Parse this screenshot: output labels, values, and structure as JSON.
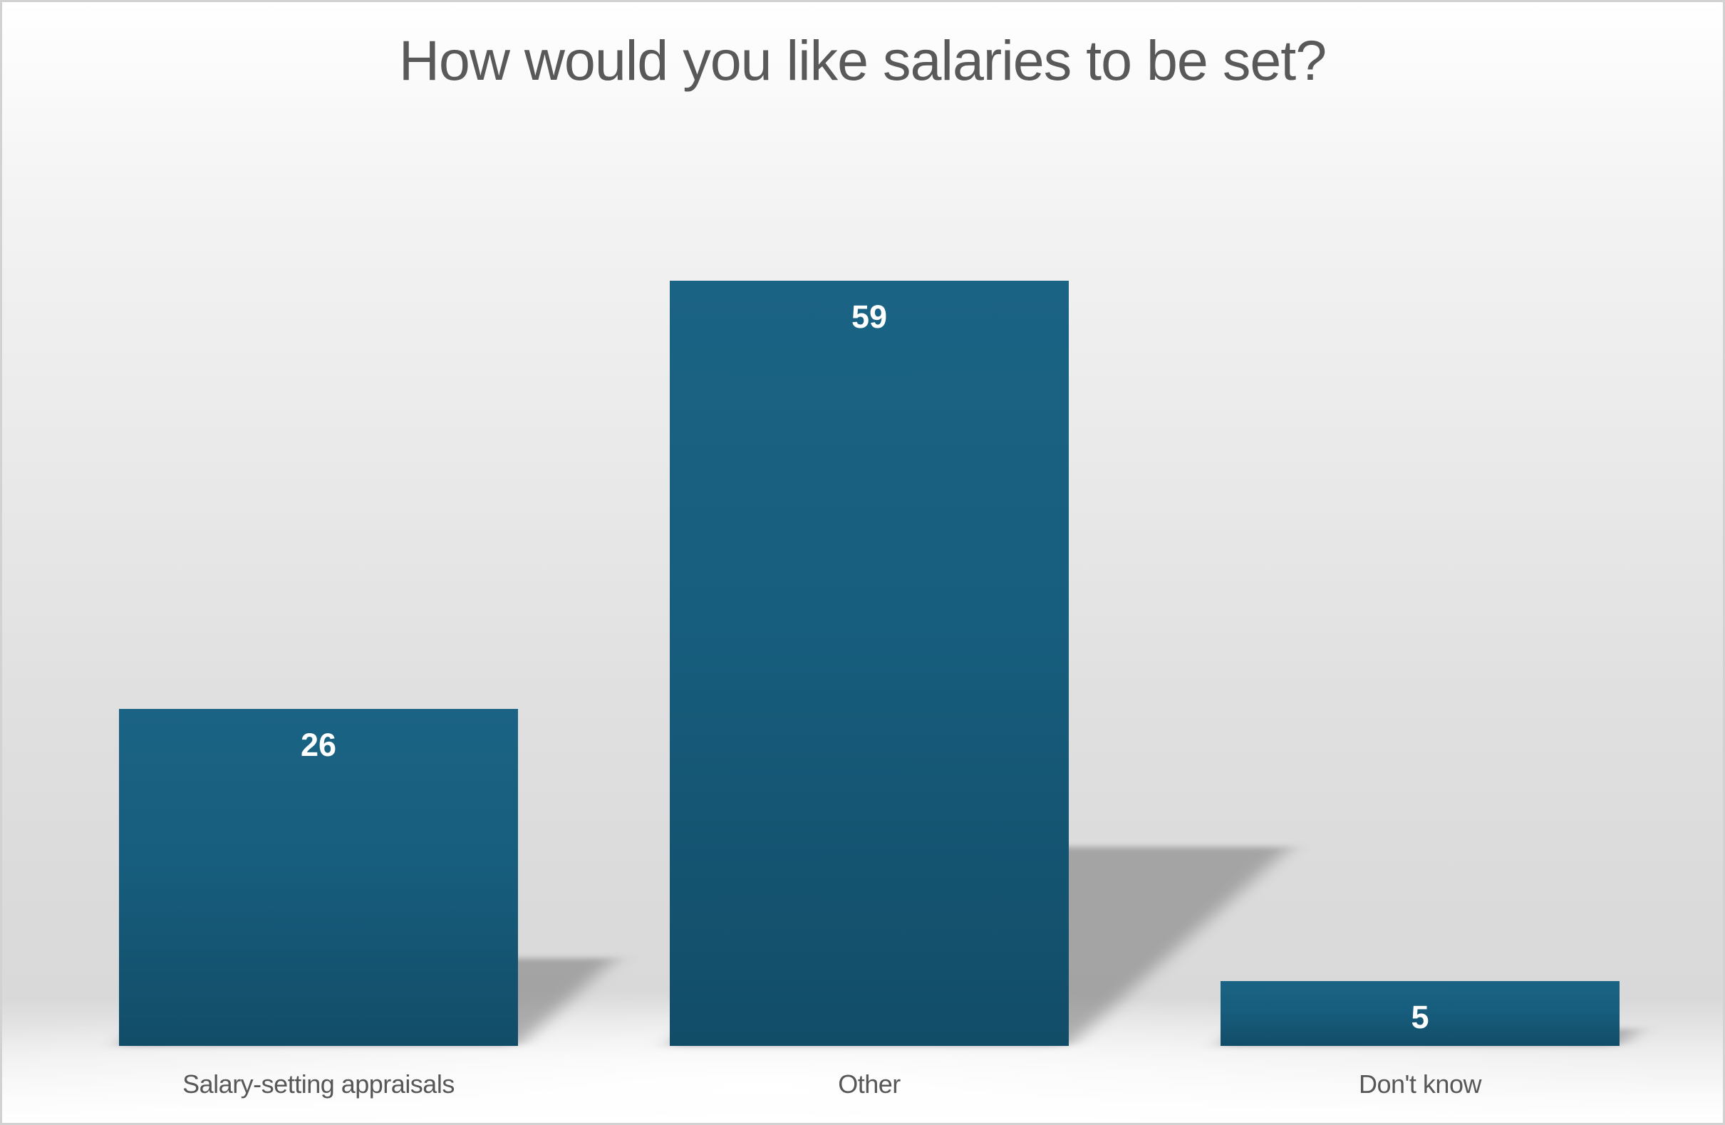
{
  "window": {
    "border_color": "#d2d2d2",
    "background": {
      "top": "#ffffff",
      "middle": "#d9d9d9",
      "bottom": "#ffffff"
    }
  },
  "chart_data": {
    "type": "bar",
    "title": "How would you like salaries to be set?",
    "categories": [
      "Salary-setting appraisals",
      "Other",
      "Don't know"
    ],
    "values": [
      26,
      59,
      5
    ],
    "xlabel": "",
    "ylabel": "",
    "ylim": [
      0,
      75
    ],
    "grid": false,
    "legend": false,
    "axes_visible": false,
    "value_label_position": "inside-end",
    "bar_color_top": "#1b6384",
    "bar_color_bottom": "#124d68",
    "value_label_color": "#ffffff",
    "category_label_color": "#575757",
    "title_color": "#595959",
    "shadow_style": "perspective-lower-right"
  }
}
